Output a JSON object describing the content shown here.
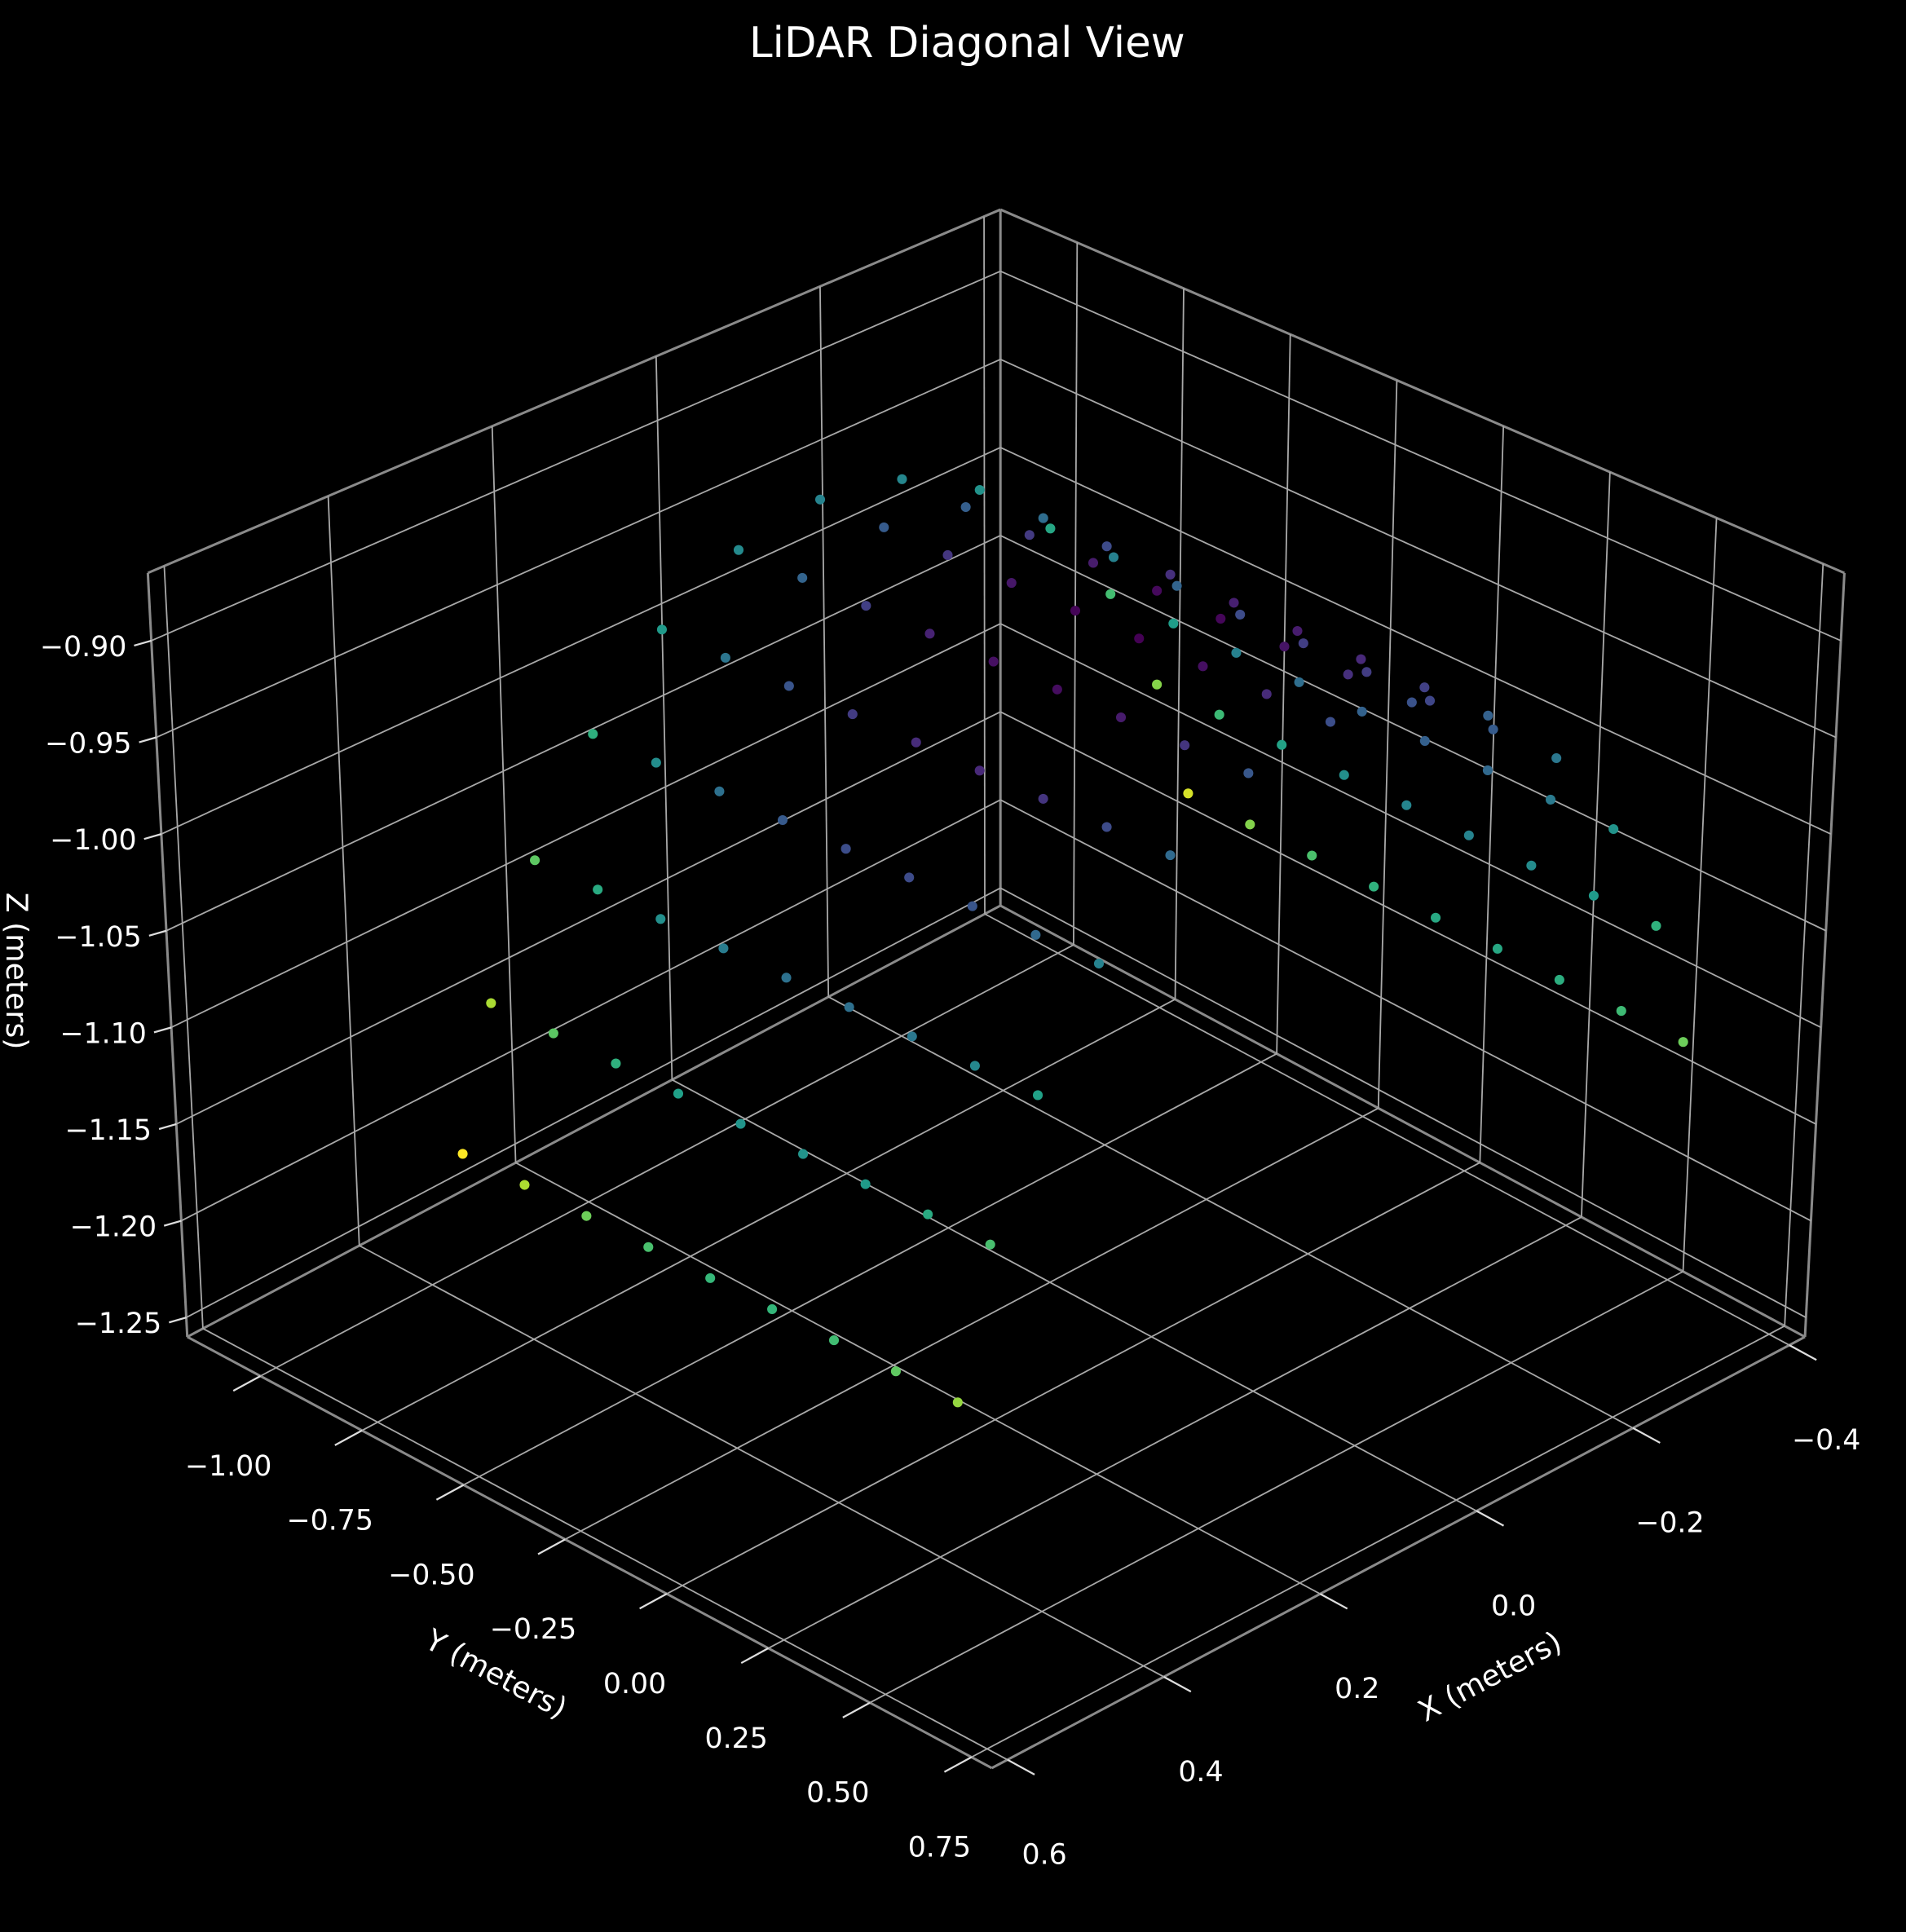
{
  "chart_data": {
    "type": "scatter3d",
    "title": "LiDAR Diagonal View",
    "x_label": "X (meters)",
    "y_label": "Y (meters)",
    "z_label": "Z (meters)",
    "colormap": "viridis",
    "color_by": "range",
    "grid": true,
    "xlim": [
      -0.42,
      0.62
    ],
    "ylim": [
      -1.18,
      0.8
    ],
    "zlim": [
      -1.26,
      -0.865
    ],
    "xticks": [
      {
        "value": -0.4,
        "label": "−0.4"
      },
      {
        "value": -0.2,
        "label": "−0.2"
      },
      {
        "value": 0,
        "label": "0.0"
      },
      0.2,
      0.4,
      0.6
    ],
    "yticks": [
      {
        "value": -1.0,
        "label": "−1.00"
      },
      {
        "value": -0.75,
        "label": "−0.75"
      },
      {
        "value": -0.5,
        "label": "−0.50"
      },
      {
        "value": -0.25,
        "label": "−0.25"
      },
      {
        "value": 0,
        "label": "0.00"
      },
      0.25,
      {
        "value": 0.5,
        "label": "0.50"
      },
      0.75
    ],
    "zticks": [
      {
        "value": -0.9,
        "label": "−0.90"
      },
      {
        "value": -0.95,
        "label": "−0.95"
      },
      {
        "value": -1.0,
        "label": "−1.00"
      },
      {
        "value": -1.05,
        "label": "−1.05"
      },
      {
        "value": -1.1,
        "label": "−1.10"
      },
      {
        "value": -1.15,
        "label": "−1.15"
      },
      {
        "value": -1.2,
        "label": "−1.20"
      },
      {
        "value": -1.25,
        "label": "−1.25"
      }
    ],
    "x": [
      0.507,
      0.466,
      0.407,
      0.332,
      0.245,
      0.15,
      0.05,
      -0.05,
      -0.145,
      -0.232,
      -0.307,
      -0.366,
      -0.407,
      0.507,
      0.466,
      0.407,
      0.332,
      0.245,
      0.15,
      0.05,
      -0.05,
      -0.145,
      -0.232,
      -0.307,
      -0.366,
      -0.407,
      0.507,
      0.466,
      0.407,
      0.332,
      0.245,
      0.15,
      0.05,
      -0.05,
      -0.145,
      -0.232,
      -0.307,
      -0.366,
      -0.407,
      0.507,
      0.466,
      0.407,
      0.332,
      0.245,
      0.15,
      0.05,
      -0.05,
      -0.145,
      -0.232,
      -0.307,
      -0.366,
      -0.407,
      0.507,
      0.466,
      0.407,
      0.332,
      0.245,
      0.15,
      0.05,
      -0.05,
      -0.145,
      -0.232,
      -0.307,
      -0.366,
      -0.407,
      0.507,
      0.466,
      0.407,
      0.332,
      0.245,
      0.15,
      0.05,
      -0.05,
      -0.145,
      -0.232,
      -0.307,
      -0.366,
      -0.407,
      0.507,
      0.466,
      0.407,
      0.332,
      0.245,
      0.15,
      0.05,
      -0.05,
      -0.145,
      -0.232,
      -0.307,
      -0.366,
      -0.407,
      0.507,
      0.466,
      0.407,
      0.332,
      0.245,
      0.15,
      0.05,
      -0.05,
      -0.145,
      -0.232,
      -0.307,
      -0.366,
      -0.407,
      0.507,
      0.466,
      0.407,
      0.332,
      0.245,
      0.15,
      0.05,
      -0.05,
      -0.145,
      -0.232,
      -0.307,
      -0.366,
      -0.407
    ],
    "y": [
      -0.7,
      -0.7,
      -0.7,
      -0.7,
      -0.7,
      -0.7,
      -0.7,
      -0.7,
      -0.7,
      -0.7,
      -0.7,
      -0.7,
      -0.7,
      -0.55,
      -0.55,
      -0.55,
      -0.55,
      -0.55,
      -0.55,
      -0.55,
      -0.55,
      -0.55,
      -0.55,
      -0.55,
      -0.55,
      -0.55,
      -0.4,
      -0.4,
      -0.4,
      -0.4,
      -0.4,
      -0.4,
      -0.4,
      -0.4,
      -0.4,
      -0.4,
      -0.4,
      -0.4,
      -0.4,
      -0.25,
      -0.25,
      -0.25,
      -0.25,
      -0.25,
      -0.25,
      -0.25,
      -0.25,
      -0.25,
      -0.25,
      -0.25,
      -0.25,
      -0.25,
      -0.1,
      -0.1,
      -0.1,
      -0.1,
      -0.1,
      -0.1,
      -0.1,
      -0.1,
      -0.1,
      -0.1,
      -0.1,
      -0.1,
      -0.1,
      0.05,
      0.05,
      0.05,
      0.05,
      0.05,
      0.05,
      0.05,
      0.05,
      0.05,
      0.05,
      0.05,
      0.05,
      0.05,
      0.2,
      0.2,
      0.2,
      0.2,
      0.2,
      0.2,
      0.2,
      0.2,
      0.2,
      0.2,
      0.2,
      0.2,
      0.2,
      0.35,
      0.35,
      0.35,
      0.35,
      0.35,
      0.35,
      0.35,
      0.35,
      0.35,
      0.35,
      0.35,
      0.35,
      0.35,
      0.5,
      0.5,
      0.5,
      0.5,
      0.5,
      0.5,
      0.5,
      0.5,
      0.5,
      0.5,
      0.5,
      0.5,
      0.5
    ],
    "z": [
      -1.137,
      -1.068,
      -1.006,
      -0.955,
      -0.917,
      -0.893,
      -0.885,
      -0.893,
      -0.917,
      -0.955,
      -1.006,
      -1.068,
      -1.137,
      -1.137,
      -1.068,
      -1.006,
      -0.955,
      -0.917,
      -0.893,
      -0.885,
      -0.893,
      -0.917,
      -0.955,
      -1.006,
      -1.068,
      -1.137,
      -1.137,
      -1.068,
      -1.006,
      -0.955,
      -0.917,
      -0.893,
      -0.885,
      -0.893,
      -0.917,
      -0.955,
      -1.006,
      -1.068,
      -1.137,
      -1.137,
      -1.068,
      -1.006,
      -0.955,
      -0.917,
      -0.893,
      -0.885,
      -0.893,
      -0.917,
      -0.955,
      -1.006,
      -1.068,
      -1.137,
      -1.137,
      -1.068,
      -1.006,
      -0.955,
      -0.917,
      -0.893,
      -0.885,
      -0.893,
      -0.917,
      -0.955,
      -1.006,
      -1.068,
      -1.137,
      -1.137,
      -1.068,
      -1.006,
      -0.955,
      -0.917,
      -0.893,
      -0.885,
      -0.893,
      -0.917,
      -0.955,
      -1.006,
      -1.068,
      -1.137,
      -1.137,
      -1.068,
      -1.006,
      -0.955,
      -0.917,
      -0.893,
      -0.885,
      -0.893,
      -0.917,
      -0.955,
      -1.006,
      -1.068,
      -1.137,
      -1.137,
      -1.068,
      -1.006,
      -0.955,
      -0.917,
      -0.893,
      -0.885,
      -0.893,
      -0.917,
      -0.955,
      -1.006,
      -1.068,
      -1.137,
      -1.137,
      -1.068,
      -1.006,
      -0.955,
      -0.917,
      -0.893,
      -0.885,
      -0.893,
      -0.917,
      -0.955,
      -1.006,
      -1.068,
      -1.137
    ]
  }
}
